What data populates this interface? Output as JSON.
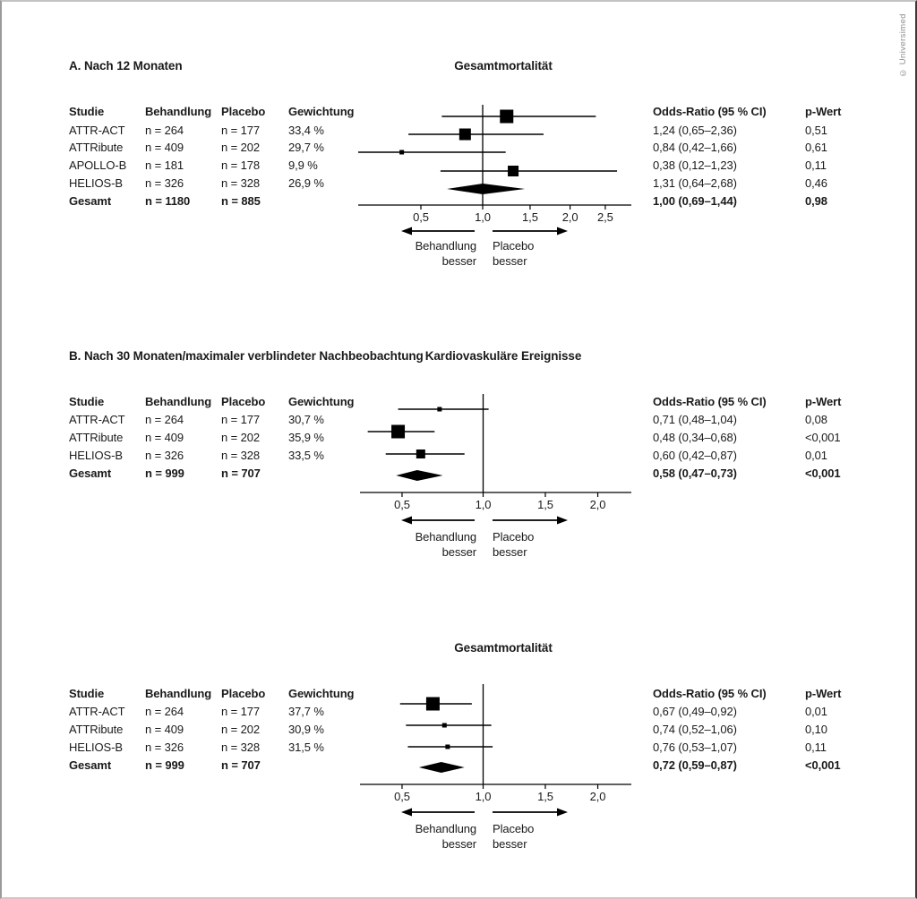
{
  "copyright": "© Universimed",
  "table_headers": {
    "studie": "Studie",
    "behandlung": "Behandlung",
    "placebo": "Placebo",
    "gewichtung": "Gewichtung",
    "odds_ratio": "Odds-Ratio (95 % CI)",
    "p_wert": "p-Wert"
  },
  "arrow_labels": {
    "left": [
      "Behandlung",
      "besser"
    ],
    "right": [
      "Placebo",
      "besser"
    ]
  },
  "chart_data": [
    {
      "type": "forest",
      "section_label": "A. Nach 12 Monaten",
      "title": "Gesamtmortalität",
      "x_axis": {
        "scale": "sqrt",
        "null_line": 1.0,
        "tick_values": [
          0.5,
          1.0,
          1.5,
          2.0,
          2.5
        ],
        "tick_labels": [
          "0,5",
          "1,0",
          "1,5",
          "2,0",
          "2,5"
        ]
      },
      "studies": [
        {
          "name": "ATTR-ACT",
          "treatment_n": "n = 264",
          "placebo_n": "n = 177",
          "weight": "33,4 %",
          "or": 1.24,
          "ci_low": 0.65,
          "ci_high": 2.36,
          "or_label": "1,24 (0,65–2,36)",
          "p_label": "0,51",
          "marker_size": 15
        },
        {
          "name": "ATTRibute",
          "treatment_n": "n = 409",
          "placebo_n": "n = 202",
          "weight": "29,7 %",
          "or": 0.84,
          "ci_low": 0.42,
          "ci_high": 1.66,
          "or_label": "0,84 (0,42–1,66)",
          "p_label": "0,61",
          "marker_size": 13
        },
        {
          "name": "APOLLO-B",
          "treatment_n": "n = 181",
          "placebo_n": "n = 178",
          "weight": "9,9 %",
          "or": 0.38,
          "ci_low": 0.12,
          "ci_high": 1.23,
          "or_label": "0,38 (0,12–1,23)",
          "p_label": "0,11",
          "marker_size": 5
        },
        {
          "name": "HELIOS-B",
          "treatment_n": "n = 326",
          "placebo_n": "n = 328",
          "weight": "26,9 %",
          "or": 1.31,
          "ci_low": 0.64,
          "ci_high": 2.68,
          "or_label": "1,31 (0,64–2,68)",
          "p_label": "0,46",
          "marker_size": 12
        }
      ],
      "total": {
        "name": "Gesamt",
        "treatment_n": "n = 1180",
        "placebo_n": "n = 885",
        "weight": "",
        "or": 1.0,
        "ci_low": 0.69,
        "ci_high": 1.44,
        "or_label": "1,00 (0,69–1,44)",
        "p_label": "0,98"
      }
    },
    {
      "type": "forest",
      "section_label": "B. Nach 30 Monaten/maximaler verblindeter Nachbeobachtung",
      "title": "Kardiovaskuläre Ereignisse",
      "x_axis": {
        "scale": "sqrt",
        "null_line": 1.0,
        "tick_values": [
          0.5,
          1.0,
          1.5,
          2.0
        ],
        "tick_labels": [
          "0,5",
          "1,0",
          "1,5",
          "2,0"
        ]
      },
      "studies": [
        {
          "name": "ATTR-ACT",
          "treatment_n": "n = 264",
          "placebo_n": "n = 177",
          "weight": "30,7 %",
          "or": 0.71,
          "ci_low": 0.48,
          "ci_high": 1.04,
          "or_label": "0,71 (0,48–1,04)",
          "p_label": "0,08",
          "marker_size": 5
        },
        {
          "name": "ATTRibute",
          "treatment_n": "n = 409",
          "placebo_n": "n = 202",
          "weight": "35,9 %",
          "or": 0.48,
          "ci_low": 0.34,
          "ci_high": 0.68,
          "or_label": "0,48 (0,34–0,68)",
          "p_label": "<0,001",
          "marker_size": 15
        },
        {
          "name": "HELIOS-B",
          "treatment_n": "n = 326",
          "placebo_n": "n = 328",
          "weight": "33,5 %",
          "or": 0.6,
          "ci_low": 0.42,
          "ci_high": 0.87,
          "or_label": "0,60 (0,42–0,87)",
          "p_label": "0,01",
          "marker_size": 10
        }
      ],
      "total": {
        "name": "Gesamt",
        "treatment_n": "n = 999",
        "placebo_n": "n = 707",
        "weight": "",
        "or": 0.58,
        "ci_low": 0.47,
        "ci_high": 0.73,
        "or_label": "0,58 (0,47–0,73)",
        "p_label": "<0,001"
      }
    },
    {
      "type": "forest",
      "section_label": "",
      "title": "Gesamtmortalität",
      "x_axis": {
        "scale": "sqrt",
        "null_line": 1.0,
        "tick_values": [
          0.5,
          1.0,
          1.5,
          2.0
        ],
        "tick_labels": [
          "0,5",
          "1,0",
          "1,5",
          "2,0"
        ]
      },
      "studies": [
        {
          "name": "ATTR-ACT",
          "treatment_n": "n = 264",
          "placebo_n": "n = 177",
          "weight": "37,7 %",
          "or": 0.67,
          "ci_low": 0.49,
          "ci_high": 0.92,
          "or_label": "0,67 (0,49–0,92)",
          "p_label": "0,01",
          "marker_size": 15
        },
        {
          "name": "ATTRibute",
          "treatment_n": "n = 409",
          "placebo_n": "n = 202",
          "weight": "30,9 %",
          "or": 0.74,
          "ci_low": 0.52,
          "ci_high": 1.06,
          "or_label": "0,74 (0,52–1,06)",
          "p_label": "0,10",
          "marker_size": 5
        },
        {
          "name": "HELIOS-B",
          "treatment_n": "n = 326",
          "placebo_n": "n = 328",
          "weight": "31,5 %",
          "or": 0.76,
          "ci_low": 0.53,
          "ci_high": 1.07,
          "or_label": "0,76 (0,53–1,07)",
          "p_label": "0,11",
          "marker_size": 5
        }
      ],
      "total": {
        "name": "Gesamt",
        "treatment_n": "n = 999",
        "placebo_n": "n = 707",
        "weight": "",
        "or": 0.72,
        "ci_low": 0.59,
        "ci_high": 0.87,
        "or_label": "0,72 (0,59–0,87)",
        "p_label": "<0,001"
      }
    }
  ]
}
